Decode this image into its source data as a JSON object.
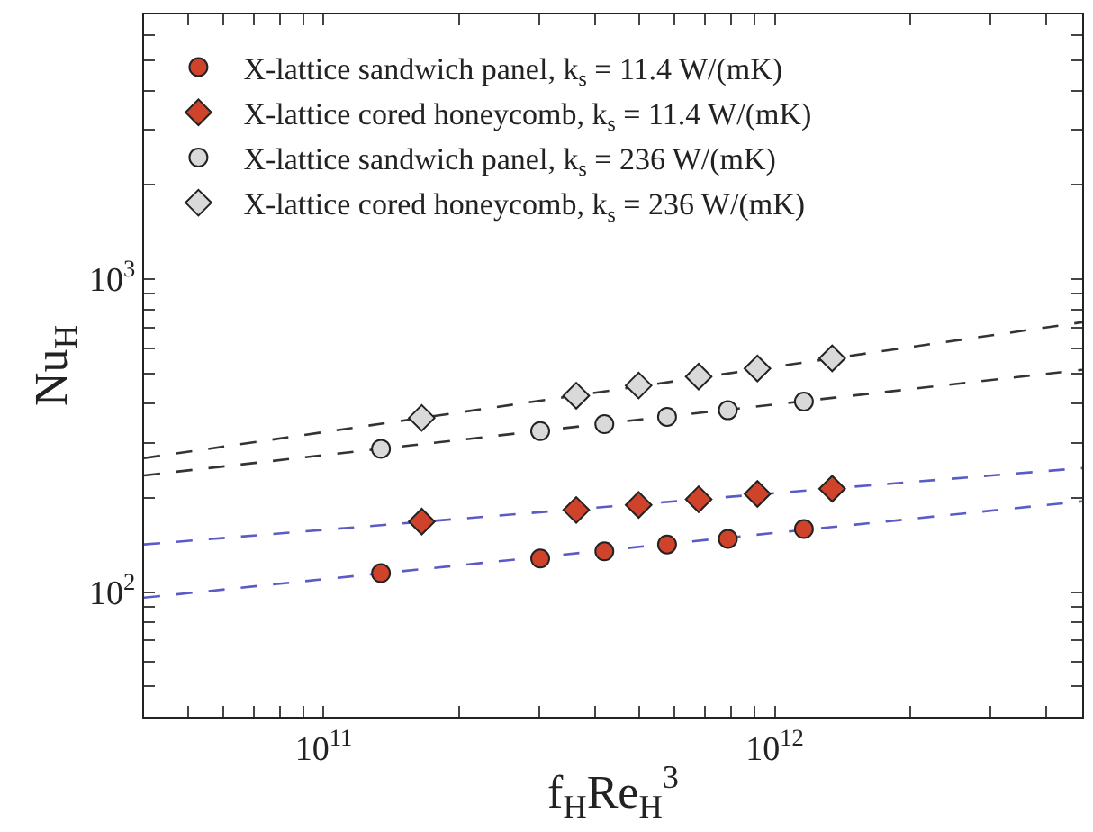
{
  "chart_data": {
    "type": "scatter",
    "xlabel": "f$_{H}$Re$_{H}$$^{3}$",
    "ylabel": "Nu$_{H}$",
    "log": "xy",
    "legend": "top left",
    "xlim": [
      40000000000.0,
      4800000000000.0
    ],
    "ylim": [
      40,
      7000
    ],
    "xticks": [
      {
        "value": 40000000000.0,
        "label": null
      },
      {
        "value": 50000000000.0,
        "label": null
      },
      {
        "value": 60000000000.0,
        "label": null
      },
      {
        "value": 70000000000.0,
        "label": null
      },
      {
        "value": 80000000000.0,
        "label": null
      },
      {
        "value": 90000000000.0,
        "label": null
      },
      {
        "value": 100000000000.0,
        "label": "10$^{11}$"
      },
      {
        "value": 200000000000.0,
        "label": null
      },
      {
        "value": 300000000000.0,
        "label": null
      },
      {
        "value": 400000000000.0,
        "label": null
      },
      {
        "value": 500000000000.0,
        "label": null
      },
      {
        "value": 600000000000.0,
        "label": null
      },
      {
        "value": 700000000000.0,
        "label": null
      },
      {
        "value": 800000000000.0,
        "label": null
      },
      {
        "value": 900000000000.0,
        "label": null
      },
      {
        "value": 1000000000000.0,
        "label": "10$^{12}$"
      },
      {
        "value": 2000000000000.0,
        "label": null
      },
      {
        "value": 3000000000000.0,
        "label": null
      },
      {
        "value": 4000000000000.0,
        "label": null
      }
    ],
    "yticks": [
      {
        "value": 40,
        "label": null
      },
      {
        "value": 50,
        "label": null
      },
      {
        "value": 60,
        "label": null
      },
      {
        "value": 70,
        "label": null
      },
      {
        "value": 80,
        "label": null
      },
      {
        "value": 90,
        "label": null
      },
      {
        "value": 100,
        "label": "10$^{2}$"
      },
      {
        "value": 200,
        "label": null
      },
      {
        "value": 300,
        "label": null
      },
      {
        "value": 400,
        "label": null
      },
      {
        "value": 500,
        "label": null
      },
      {
        "value": 600,
        "label": null
      },
      {
        "value": 700,
        "label": null
      },
      {
        "value": 800,
        "label": null
      },
      {
        "value": 900,
        "label": null
      },
      {
        "value": 1000,
        "label": "10$^{3}$"
      },
      {
        "value": 2000,
        "label": null
      },
      {
        "value": 3000,
        "label": null
      },
      {
        "value": 4000,
        "label": null
      },
      {
        "value": 5000,
        "label": null
      },
      {
        "value": 6000,
        "label": null
      },
      {
        "value": 7000,
        "label": null
      }
    ],
    "series": [
      {
        "type": "line",
        "color": "#5b5bc8",
        "line_style": "dashed",
        "marker": "none",
        "x": [
          40000000000.0,
          4800000000000.0
        ],
        "values": [
          96,
          195
        ]
      },
      {
        "type": "line",
        "color": "#5b5bc8",
        "line_style": "dashed",
        "marker": "none",
        "x": [
          40000000000.0,
          4800000000000.0
        ],
        "values": [
          142,
          249
        ]
      },
      {
        "type": "line",
        "color": "#333333",
        "line_style": "dashed",
        "marker": "none",
        "x": [
          40000000000.0,
          4800000000000.0
        ],
        "values": [
          236,
          513
        ]
      },
      {
        "type": "line",
        "color": "#333333",
        "line_style": "dashed",
        "marker": "none",
        "x": [
          40000000000.0,
          4800000000000.0
        ],
        "values": [
          268,
          728
        ]
      },
      {
        "name": "X-lattice sandwich panel, k$_{s}$ = 11.4 W/(mK)",
        "color": "#d0432b",
        "marker": "circle",
        "x": [
          134000000000.0,
          302000000000.0,
          419000000000.0,
          577000000000.0,
          787000000000.0,
          1160000000000.0
        ],
        "values": [
          115,
          128,
          135,
          142,
          148,
          159
        ]
      },
      {
        "name": "X-lattice cored honeycomb, k$_{s}$ = 11.4 W/(mK)",
        "color": "#d0432b",
        "marker": "diamond",
        "x": [
          165000000000.0,
          363000000000.0,
          499000000000.0,
          678000000000.0,
          915000000000.0,
          1340000000000.0
        ],
        "values": [
          168,
          183,
          190,
          198,
          206,
          214
        ]
      },
      {
        "name": "X-lattice sandwich panel, k$_{s}$ = 236 W/(mK)",
        "color": "#d9d9d9",
        "marker": "circle",
        "x": [
          134000000000.0,
          302000000000.0,
          419000000000.0,
          577000000000.0,
          787000000000.0,
          1160000000000.0
        ],
        "values": [
          287,
          327,
          344,
          363,
          381,
          406
        ]
      },
      {
        "name": "X-lattice cored honeycomb, k$_{s}$ = 236 W/(mK)",
        "color": "#d9d9d9",
        "marker": "diamond",
        "x": [
          165000000000.0,
          363000000000.0,
          499000000000.0,
          678000000000.0,
          915000000000.0,
          1340000000000.0
        ],
        "values": [
          360,
          424,
          457,
          488,
          518,
          558
        ]
      }
    ]
  }
}
